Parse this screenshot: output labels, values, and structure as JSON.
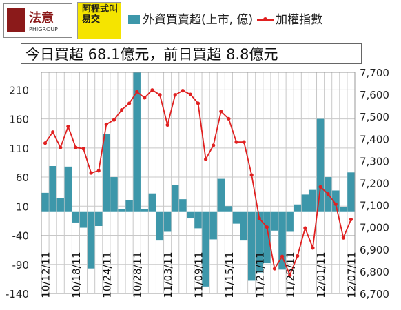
{
  "header": {
    "logo1_text": "法意",
    "logo1_sub": "PHIGROUP",
    "logo2_text": "阿程式叫易交"
  },
  "legend": {
    "bar_label": "外資買賣超(上市, 億)",
    "line_label": "加權指數"
  },
  "headline": "今日買超 68.1億元，前日買超 8.8億元",
  "colors": {
    "bar": "#3d97aa",
    "line": "#e02020",
    "grid": "#c8c8c8",
    "plot_bg": "#ffffff"
  },
  "chart_data": {
    "type": "bar+line",
    "x_tick_labels": [
      "10/12/11",
      "10/18/11",
      "10/24/11",
      "10/28/11",
      "11/03/11",
      "11/09/11",
      "11/15/11",
      "11/21/11",
      "11/25/11",
      "12/01/11",
      "12/07/11"
    ],
    "x_tick_index": [
      0,
      4,
      8,
      12,
      16,
      20,
      24,
      28,
      32,
      36,
      40
    ],
    "bar_axis": {
      "ylim": [
        -140,
        240
      ],
      "ticks": [
        210,
        160,
        110,
        60,
        10,
        -40,
        -90,
        -140
      ]
    },
    "line_axis": {
      "ylim": [
        6700,
        7700
      ],
      "ticks": [
        "7,700",
        "7,600",
        "7,500",
        "7,400",
        "7,300",
        "7,200",
        "7,100",
        "7,000",
        "6,900",
        "6,800",
        "6,700"
      ]
    },
    "series": [
      {
        "name": "外資買賣超(上市, 億)",
        "type": "bar",
        "axis": "left",
        "values": [
          33,
          79,
          24,
          78,
          -18,
          -27,
          -97,
          -24,
          134,
          60,
          5,
          21,
          240,
          5,
          32,
          -49,
          -34,
          47,
          22,
          -11,
          -28,
          -128,
          -47,
          57,
          10,
          -20,
          -49,
          -118,
          -104,
          -88,
          -32,
          -99,
          -34,
          13,
          30,
          38,
          160,
          60,
          37,
          9,
          68
        ]
      },
      {
        "name": "加權指數",
        "type": "line",
        "axis": "right",
        "values": [
          7380,
          7430,
          7360,
          7455,
          7360,
          7355,
          7245,
          7255,
          7465,
          7485,
          7530,
          7560,
          7612,
          7585,
          7620,
          7598,
          7462,
          7598,
          7617,
          7600,
          7560,
          7307,
          7370,
          7523,
          7490,
          7385,
          7385,
          7236,
          7040,
          7000,
          6812,
          6868,
          6783,
          6870,
          6996,
          6906,
          7182,
          7150,
          7104,
          6952,
          7035
        ]
      }
    ]
  }
}
